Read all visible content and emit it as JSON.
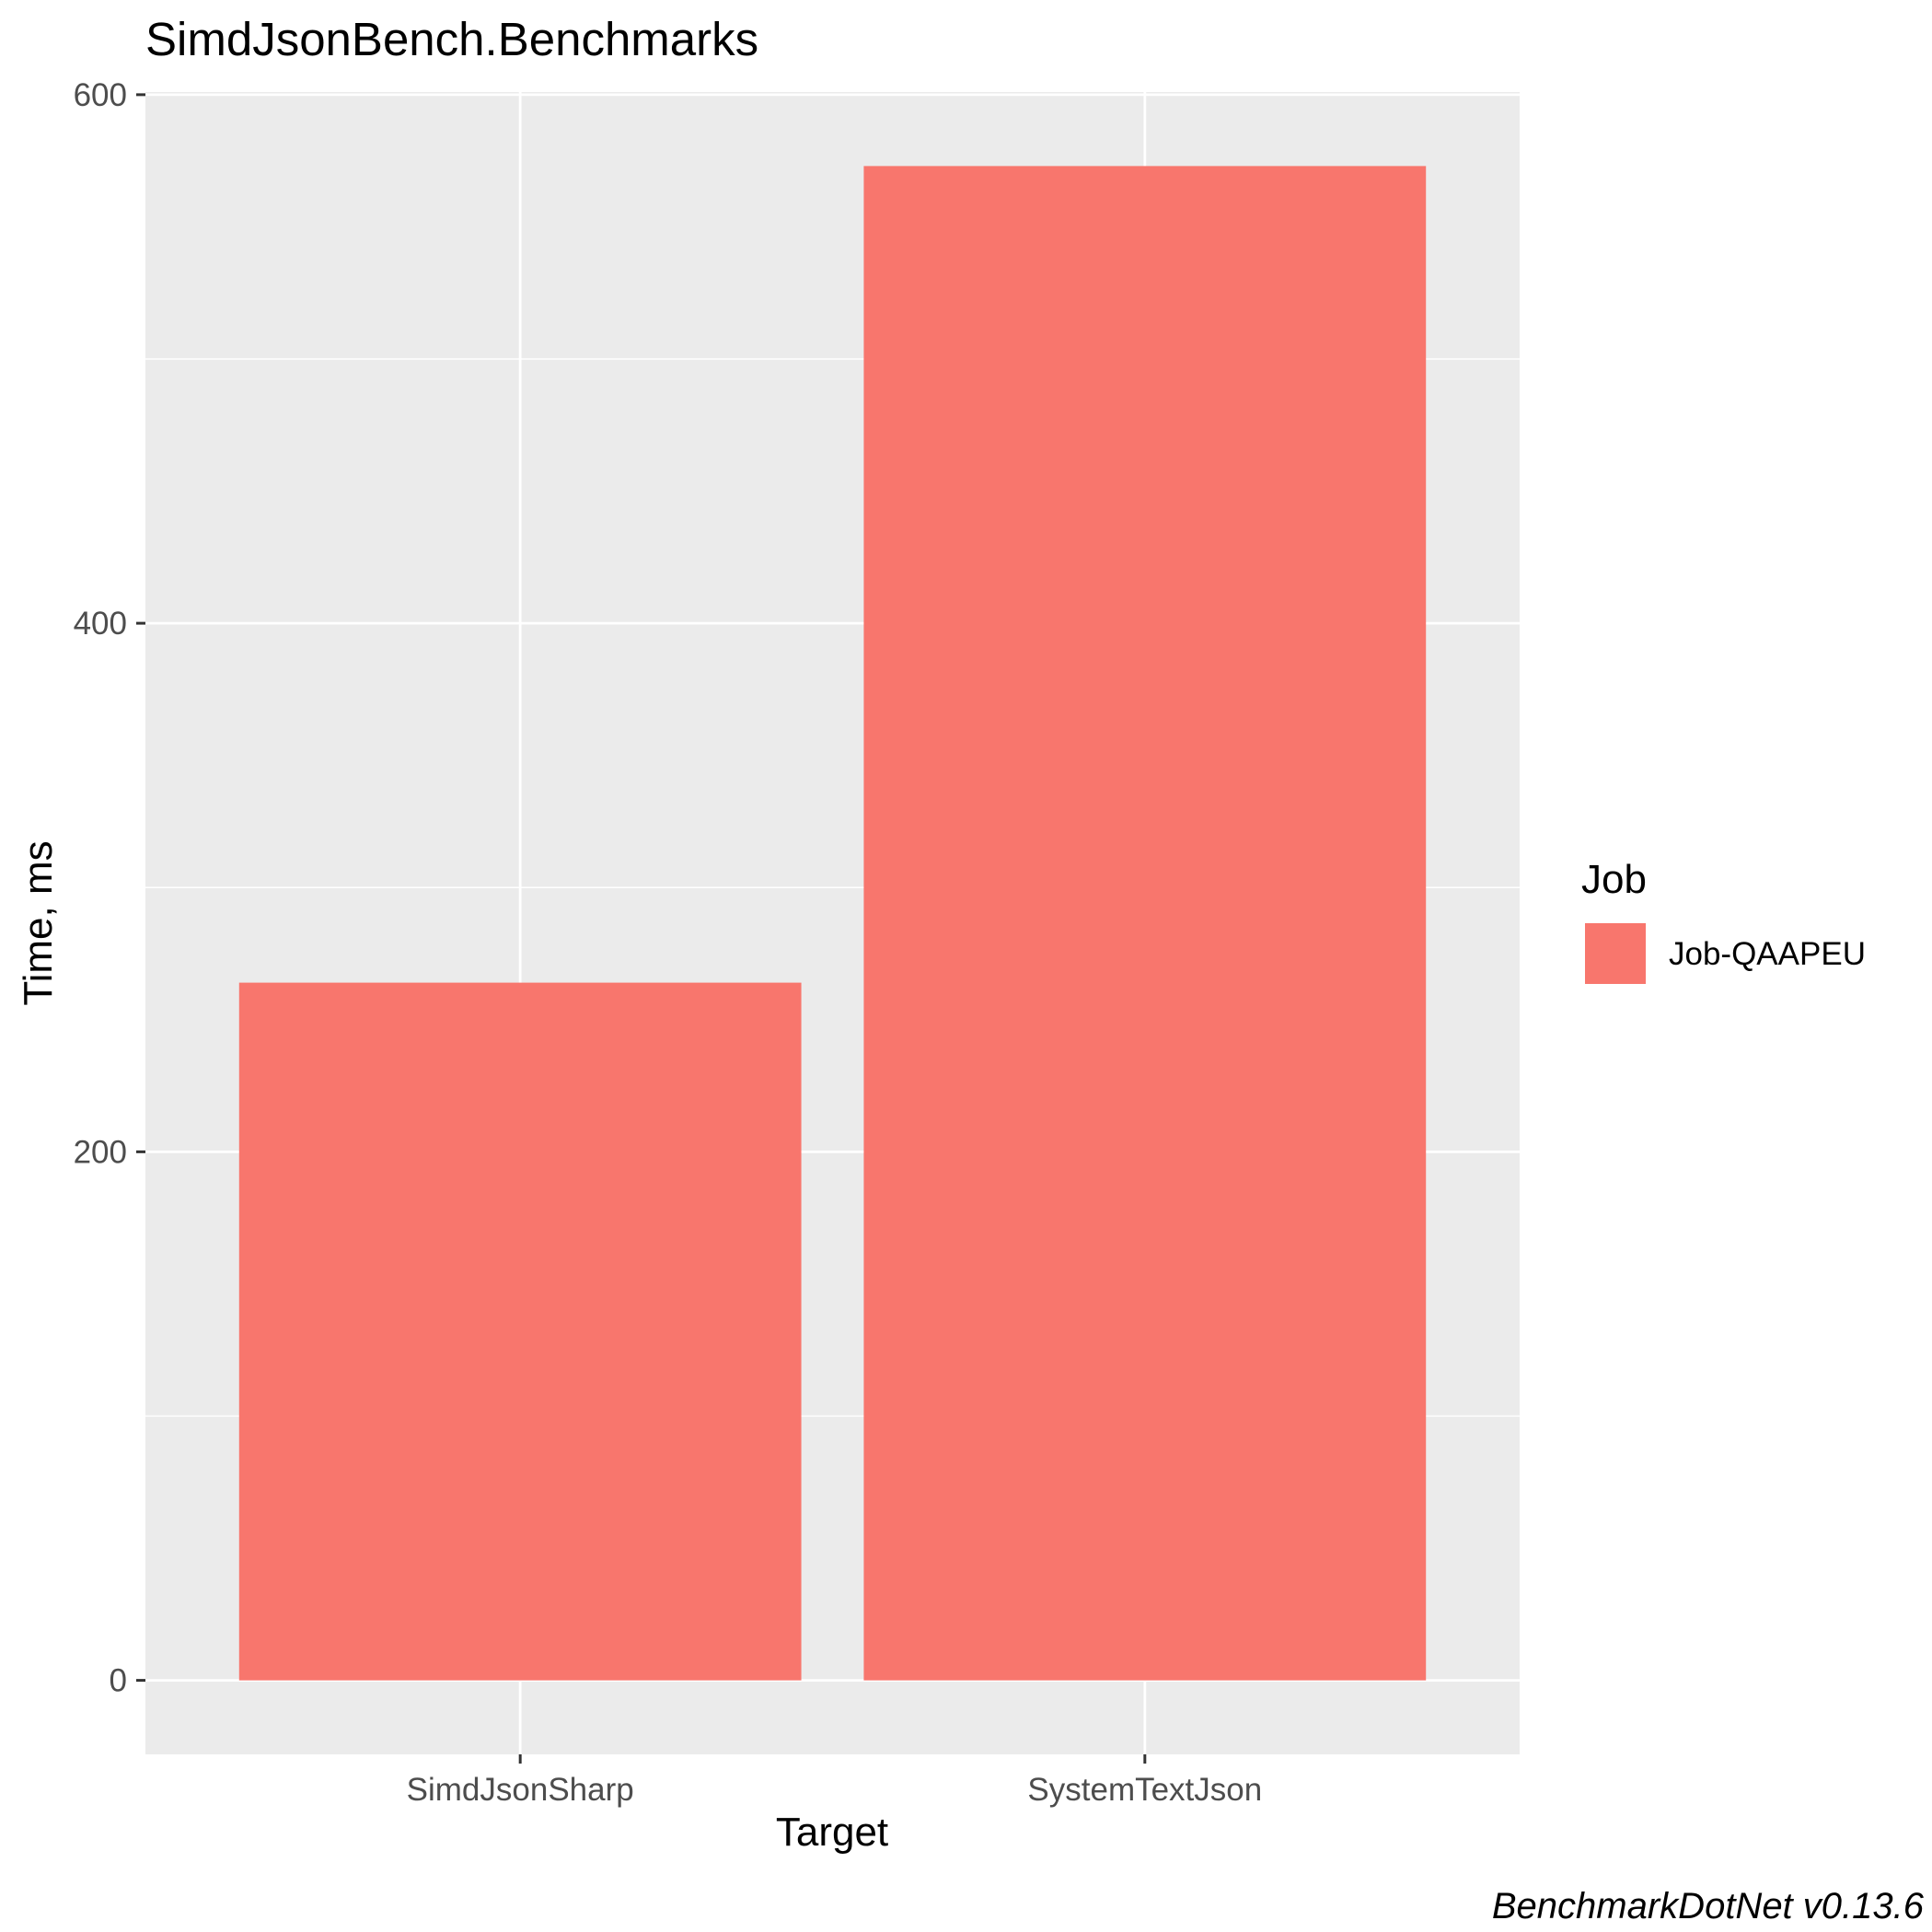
{
  "chart_data": {
    "type": "bar",
    "title": "SimdJsonBench.Benchmarks",
    "xlabel": "Target",
    "ylabel": "Time, ms",
    "categories": [
      "SimdJsonSharp",
      "SystemTextJson"
    ],
    "series": [
      {
        "name": "Job-QAAPEU",
        "values": [
          264,
          573
        ],
        "color": "#f8766d"
      }
    ],
    "ylim": [
      -28,
      601
    ],
    "yticks": [
      0,
      200,
      400,
      600
    ],
    "yticks_minor": [
      100,
      300,
      500
    ],
    "grid": true,
    "panel_background": "#ebebeb",
    "legend": {
      "title": "Job",
      "position": "right"
    },
    "caption": "BenchmarkDotNet v0.13.6"
  }
}
